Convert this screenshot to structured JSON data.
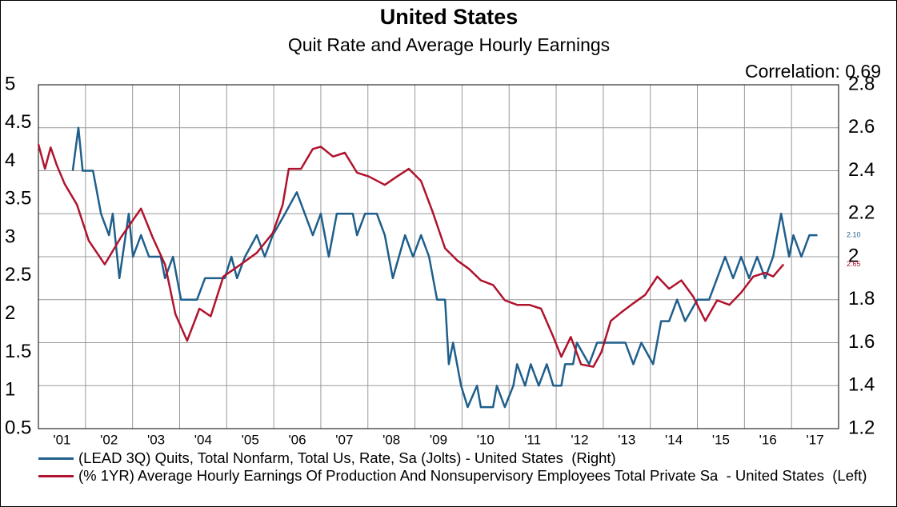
{
  "chart_data": {
    "type": "line",
    "title": "United States",
    "subtitle": "Quit Rate and Average Hourly Earnings",
    "annotation": "Correlation: 0.69",
    "xlim": [
      2001,
      2018
    ],
    "xticks": [
      {
        "value": 2001,
        "label": "'01"
      },
      {
        "value": 2002,
        "label": "'02"
      },
      {
        "value": 2003,
        "label": "'03"
      },
      {
        "value": 2004,
        "label": "'04"
      },
      {
        "value": 2005,
        "label": "'05"
      },
      {
        "value": 2006,
        "label": "'06"
      },
      {
        "value": 2007,
        "label": "'07"
      },
      {
        "value": 2008,
        "label": "'08"
      },
      {
        "value": 2009,
        "label": "'09"
      },
      {
        "value": 2010,
        "label": "'10"
      },
      {
        "value": 2011,
        "label": "'11"
      },
      {
        "value": 2012,
        "label": "'12"
      },
      {
        "value": 2013,
        "label": "'13"
      },
      {
        "value": 2014,
        "label": "'14"
      },
      {
        "value": 2015,
        "label": "'15"
      },
      {
        "value": 2016,
        "label": "'16"
      },
      {
        "value": 2017,
        "label": "'17"
      }
    ],
    "ylim": [
      0.5,
      5
    ],
    "yticks": [
      0.5,
      1,
      1.5,
      2,
      2.5,
      3,
      3.5,
      4,
      4.5,
      5
    ],
    "y2lim": [
      1.2,
      2.8
    ],
    "y2ticks": [
      1.2,
      1.4,
      1.6,
      1.8,
      2,
      2.2,
      2.4,
      2.6,
      2.8
    ],
    "grid": true,
    "series": [
      {
        "name": "(LEAD 3Q) Quits, Total Nonfarm, Total Us, Rate, Sa (Jolts) - United States  (Right)",
        "color": "#1f5f8b",
        "axis": "y2",
        "last_label": "2.10",
        "x": [
          2001.73,
          2001.85,
          2001.94,
          2002.16,
          2002.33,
          2002.5,
          2002.58,
          2002.72,
          2002.92,
          2003.01,
          2003.18,
          2003.35,
          2003.6,
          2003.69,
          2003.86,
          2004.03,
          2004.37,
          2004.54,
          2004.96,
          2005.1,
          2005.22,
          2005.39,
          2005.64,
          2005.81,
          2005.98,
          2006.24,
          2006.49,
          2006.66,
          2006.83,
          2007.0,
          2007.17,
          2007.34,
          2007.68,
          2007.77,
          2007.94,
          2008.19,
          2008.36,
          2008.53,
          2008.79,
          2008.96,
          2009.13,
          2009.3,
          2009.47,
          2009.64,
          2009.72,
          2009.81,
          2009.98,
          2010.12,
          2010.32,
          2010.4,
          2010.66,
          2010.74,
          2010.91,
          2011.09,
          2011.17,
          2011.34,
          2011.46,
          2011.63,
          2011.8,
          2011.94,
          2012.11,
          2012.19,
          2012.36,
          2012.44,
          2012.7,
          2012.87,
          2013.04,
          2013.47,
          2013.64,
          2013.81,
          2014.06,
          2014.23,
          2014.4,
          2014.57,
          2014.74,
          2015.0,
          2015.25,
          2015.42,
          2015.59,
          2015.76,
          2015.93,
          2016.1,
          2016.27,
          2016.44,
          2016.61,
          2016.78,
          2016.95,
          2017.04,
          2017.21,
          2017.38,
          2017.55
        ],
        "values": [
          2.4,
          2.6,
          2.4,
          2.4,
          2.2,
          2.1,
          2.2,
          1.9,
          2.2,
          2.0,
          2.1,
          2.0,
          2.0,
          1.9,
          2.0,
          1.8,
          1.8,
          1.9,
          1.9,
          2.0,
          1.9,
          2.0,
          2.1,
          2.0,
          2.1,
          2.2,
          2.3,
          2.2,
          2.1,
          2.2,
          2.0,
          2.2,
          2.2,
          2.1,
          2.2,
          2.2,
          2.1,
          1.9,
          2.1,
          2.0,
          2.1,
          2.0,
          1.8,
          1.8,
          1.5,
          1.6,
          1.4,
          1.3,
          1.4,
          1.3,
          1.3,
          1.4,
          1.3,
          1.4,
          1.5,
          1.4,
          1.5,
          1.4,
          1.5,
          1.4,
          1.4,
          1.5,
          1.5,
          1.6,
          1.5,
          1.6,
          1.6,
          1.6,
          1.5,
          1.6,
          1.5,
          1.7,
          1.7,
          1.8,
          1.7,
          1.8,
          1.8,
          1.9,
          2.0,
          1.9,
          2.0,
          1.9,
          2.0,
          1.9,
          2.0,
          2.2,
          2.0,
          2.1,
          2.0,
          2.1,
          2.1
        ]
      },
      {
        "name": "(% 1YR) Average Hourly Earnings Of Production And Nonsupervisory Employees Total Private Sa  - United States  (Left)",
        "color": "#b0132e",
        "axis": "y",
        "last_label": "2.65",
        "x": [
          2001.0,
          2001.14,
          2001.26,
          2001.39,
          2001.56,
          2001.82,
          2002.07,
          2002.41,
          2002.75,
          2003.18,
          2003.43,
          2003.69,
          2003.91,
          2004.16,
          2004.42,
          2004.66,
          2004.93,
          2005.3,
          2005.64,
          2005.98,
          2006.19,
          2006.32,
          2006.58,
          2006.83,
          2007.0,
          2007.26,
          2007.51,
          2007.77,
          2008.02,
          2008.36,
          2008.62,
          2008.87,
          2009.13,
          2009.38,
          2009.64,
          2009.9,
          2010.15,
          2010.4,
          2010.66,
          2010.91,
          2011.17,
          2011.43,
          2011.68,
          2011.94,
          2012.11,
          2012.31,
          2012.53,
          2012.79,
          2012.96,
          2013.16,
          2013.38,
          2013.64,
          2013.89,
          2014.15,
          2014.4,
          2014.66,
          2014.91,
          2015.17,
          2015.42,
          2015.68,
          2015.93,
          2016.19,
          2016.44,
          2016.61,
          2016.83
        ],
        "values": [
          4.22,
          3.9,
          4.18,
          3.95,
          3.7,
          3.43,
          2.96,
          2.65,
          3.0,
          3.38,
          3.0,
          2.65,
          2.0,
          1.65,
          2.07,
          1.97,
          2.49,
          2.65,
          2.8,
          3.06,
          3.43,
          3.9,
          3.9,
          4.16,
          4.19,
          4.06,
          4.11,
          3.85,
          3.8,
          3.69,
          3.8,
          3.9,
          3.74,
          3.33,
          2.86,
          2.7,
          2.59,
          2.44,
          2.38,
          2.18,
          2.12,
          2.12,
          2.07,
          1.7,
          1.44,
          1.7,
          1.34,
          1.31,
          1.5,
          1.91,
          2.02,
          2.14,
          2.25,
          2.49,
          2.33,
          2.44,
          2.23,
          1.91,
          2.18,
          2.12,
          2.28,
          2.49,
          2.54,
          2.49,
          2.65
        ]
      }
    ]
  }
}
